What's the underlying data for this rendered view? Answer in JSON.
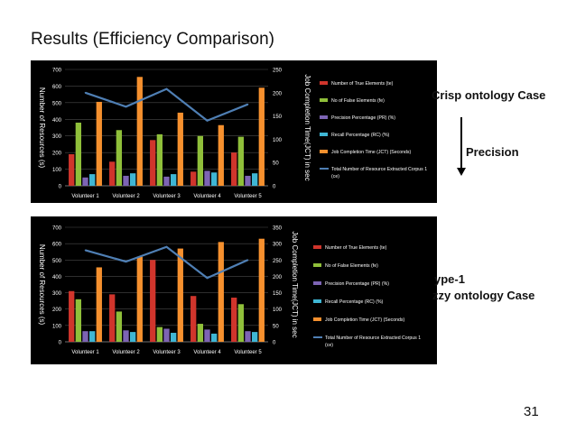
{
  "slide": {
    "title": "Results (Efficiency Comparison)",
    "label_crisp": "Crisp ontology Case",
    "label_precision": "Precision",
    "label_type1": "ype-1",
    "label_fuzzy": "zzy ontology Case",
    "page_number": "31"
  },
  "chart_data": [
    {
      "type": "bar",
      "categories": [
        "Volunteer 1",
        "Volunteer 2",
        "Volunteer 3",
        "Volunteer 4",
        "Volunteer 5"
      ],
      "ylabel": "Number of Resources (s)",
      "y2label": "Job Completion Time(JCT) in sec",
      "ylim": [
        0,
        700
      ],
      "y2lim": [
        0,
        250
      ],
      "yticks": [
        "0",
        "100",
        "200",
        "300",
        "400",
        "500",
        "600",
        "700"
      ],
      "y2ticks": [
        "0",
        "50",
        "100",
        "150",
        "200",
        "250"
      ],
      "grid": true,
      "legend_position": "right",
      "series": [
        {
          "name": "Number of True Elements (te)",
          "color": "#d0352c",
          "values": [
            190,
            145,
            275,
            85,
            200
          ]
        },
        {
          "name": "No of False Elements (fe)",
          "color": "#8fbf3a",
          "values": [
            380,
            335,
            310,
            300,
            295
          ]
        },
        {
          "name": "Precision Percentage (PR) (%)",
          "color": "#7d64b4",
          "values": [
            50,
            60,
            55,
            90,
            60
          ]
        },
        {
          "name": "Recall Percentage (RC) (%)",
          "color": "#3fb6d4",
          "values": [
            70,
            75,
            70,
            80,
            75
          ]
        },
        {
          "name": "Job Completion Time (JCT) (Seconds)",
          "color": "#f5902e",
          "values": [
            505,
            655,
            440,
            365,
            590
          ]
        }
      ],
      "line_series": {
        "name": "Total Number of Resource Extracted Corpus 1 (ce)",
        "color": "#4f7fb4",
        "axis": "y2",
        "values": [
          200,
          170,
          208,
          140,
          175
        ]
      }
    },
    {
      "type": "bar",
      "categories": [
        "Volunteer 1",
        "Volunteer 2",
        "Volunteer 3",
        "Volunteer 4",
        "Volunteer 5"
      ],
      "ylabel": "Number of Resources (s)",
      "y2label": "Job Completion Time(JCT) in sec",
      "ylim": [
        0,
        700
      ],
      "y2lim": [
        0,
        350
      ],
      "yticks": [
        "0",
        "100",
        "200",
        "300",
        "400",
        "500",
        "600",
        "700"
      ],
      "y2ticks": [
        "0",
        "50",
        "100",
        "150",
        "200",
        "250",
        "300",
        "350"
      ],
      "grid": true,
      "legend_position": "right",
      "series": [
        {
          "name": "Number of True Elements (te)",
          "color": "#d0352c",
          "values": [
            310,
            290,
            500,
            280,
            270
          ]
        },
        {
          "name": "No of False Elements (fe)",
          "color": "#8fbf3a",
          "values": [
            260,
            185,
            90,
            110,
            230
          ]
        },
        {
          "name": "Precision Percentage (PR) (%)",
          "color": "#7d64b4",
          "values": [
            65,
            70,
            80,
            75,
            65
          ]
        },
        {
          "name": "Recall Percentage (RC) (%)",
          "color": "#3fb6d4",
          "values": [
            65,
            60,
            55,
            50,
            60
          ]
        },
        {
          "name": "Job Completion Time (JCT) (Seconds)",
          "color": "#f5902e",
          "values": [
            455,
            520,
            570,
            610,
            630
          ]
        }
      ],
      "line_series": {
        "name": "Total Number of Resource Extracted Corpus 1 (ce)",
        "color": "#4f7fb4",
        "axis": "y2",
        "values": [
          280,
          245,
          290,
          195,
          250
        ]
      }
    }
  ]
}
